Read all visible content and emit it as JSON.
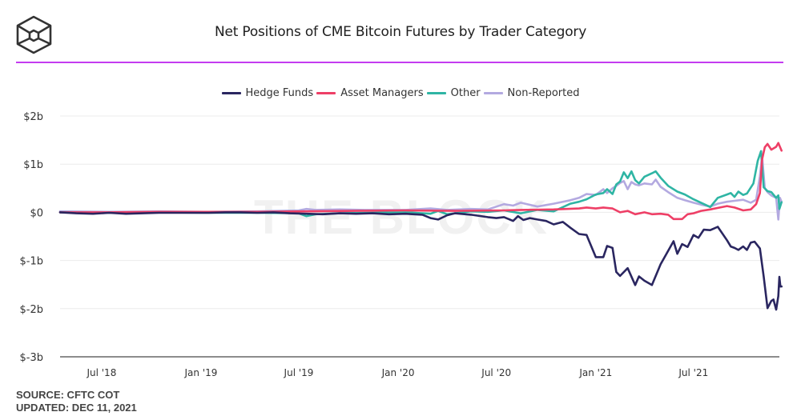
{
  "header": {
    "logo_icon": "cube-logo-icon",
    "title": "Net Positions of CME Bitcoin Futures by Trader Category",
    "divider_color": "#c43bf0"
  },
  "footer": {
    "source": "SOURCE: CFTC COT",
    "updated": "UPDATED: DEC 11, 2021"
  },
  "chart_data": {
    "type": "line",
    "title": "Net Positions of CME Bitcoin Futures by Trader Category",
    "xlabel": "",
    "ylabel": "",
    "watermark": "THE BLOCK",
    "legend_position": "top-center",
    "grid": true,
    "x_range": [
      "2018-04-15",
      "2021-12-07"
    ],
    "ylim": [
      -3,
      2
    ],
    "y_unit": "$b",
    "y_ticks": [
      {
        "value": 2,
        "label": "$2b"
      },
      {
        "value": 1,
        "label": "$1b"
      },
      {
        "value": 0,
        "label": "$0"
      },
      {
        "value": -1,
        "label": "$-1b"
      },
      {
        "value": -2,
        "label": "$-2b"
      },
      {
        "value": -3,
        "label": "$-3b"
      }
    ],
    "x_ticks": [
      {
        "date": "2018-07-01",
        "label": "Jul '18"
      },
      {
        "date": "2019-01-01",
        "label": "Jan '19"
      },
      {
        "date": "2019-07-01",
        "label": "Jul '19"
      },
      {
        "date": "2020-01-01",
        "label": "Jan '20"
      },
      {
        "date": "2020-07-01",
        "label": "Jul '20"
      },
      {
        "date": "2021-01-01",
        "label": "Jan '21"
      },
      {
        "date": "2021-07-01",
        "label": "Jul '21"
      }
    ],
    "series": [
      {
        "name": "Hedge Funds",
        "color": "#2a2660",
        "points": [
          [
            "2018-04-15",
            0.0
          ],
          [
            "2018-05-15",
            -0.02
          ],
          [
            "2018-06-15",
            -0.03
          ],
          [
            "2018-07-15",
            -0.01
          ],
          [
            "2018-08-15",
            -0.03
          ],
          [
            "2018-09-15",
            -0.02
          ],
          [
            "2018-10-15",
            -0.01
          ],
          [
            "2018-11-15",
            -0.01
          ],
          [
            "2018-12-15",
            -0.01
          ],
          [
            "2019-01-15",
            -0.01
          ],
          [
            "2019-02-15",
            0.0
          ],
          [
            "2019-03-15",
            0.0
          ],
          [
            "2019-04-15",
            -0.01
          ],
          [
            "2019-05-15",
            0.0
          ],
          [
            "2019-06-15",
            -0.02
          ],
          [
            "2019-07-15",
            -0.03
          ],
          [
            "2019-08-15",
            -0.04
          ],
          [
            "2019-09-15",
            -0.02
          ],
          [
            "2019-10-15",
            -0.03
          ],
          [
            "2019-11-15",
            -0.02
          ],
          [
            "2019-12-15",
            -0.04
          ],
          [
            "2020-01-15",
            -0.03
          ],
          [
            "2020-02-15",
            -0.05
          ],
          [
            "2020-03-01",
            -0.12
          ],
          [
            "2020-03-15",
            -0.15
          ],
          [
            "2020-04-01",
            -0.06
          ],
          [
            "2020-04-15",
            -0.02
          ],
          [
            "2020-05-15",
            -0.05
          ],
          [
            "2020-06-15",
            -0.1
          ],
          [
            "2020-07-01",
            -0.12
          ],
          [
            "2020-07-15",
            -0.1
          ],
          [
            "2020-08-01",
            -0.18
          ],
          [
            "2020-08-10",
            -0.08
          ],
          [
            "2020-08-20",
            -0.16
          ],
          [
            "2020-09-01",
            -0.12
          ],
          [
            "2020-09-15",
            -0.15
          ],
          [
            "2020-10-01",
            -0.18
          ],
          [
            "2020-10-15",
            -0.25
          ],
          [
            "2020-11-01",
            -0.2
          ],
          [
            "2020-11-15",
            -0.32
          ],
          [
            "2020-12-01",
            -0.45
          ],
          [
            "2020-12-15",
            -0.47
          ],
          [
            "2021-01-01",
            -0.93
          ],
          [
            "2021-01-15",
            -0.93
          ],
          [
            "2021-01-22",
            -0.7
          ],
          [
            "2021-02-01",
            -0.74
          ],
          [
            "2021-02-08",
            -1.24
          ],
          [
            "2021-02-15",
            -1.32
          ],
          [
            "2021-03-01",
            -1.16
          ],
          [
            "2021-03-15",
            -1.51
          ],
          [
            "2021-03-22",
            -1.33
          ],
          [
            "2021-04-01",
            -1.42
          ],
          [
            "2021-04-15",
            -1.51
          ],
          [
            "2021-05-01",
            -1.08
          ],
          [
            "2021-05-15",
            -0.8
          ],
          [
            "2021-05-25",
            -0.6
          ],
          [
            "2021-06-01",
            -0.86
          ],
          [
            "2021-06-10",
            -0.66
          ],
          [
            "2021-06-20",
            -0.72
          ],
          [
            "2021-07-01",
            -0.47
          ],
          [
            "2021-07-10",
            -0.53
          ],
          [
            "2021-07-20",
            -0.36
          ],
          [
            "2021-08-01",
            -0.37
          ],
          [
            "2021-08-15",
            -0.3
          ],
          [
            "2021-09-01",
            -0.58
          ],
          [
            "2021-09-08",
            -0.71
          ],
          [
            "2021-09-15",
            -0.74
          ],
          [
            "2021-09-22",
            -0.78
          ],
          [
            "2021-10-01",
            -0.71
          ],
          [
            "2021-10-08",
            -0.78
          ],
          [
            "2021-10-15",
            -0.63
          ],
          [
            "2021-10-22",
            -0.61
          ],
          [
            "2021-11-01",
            -0.75
          ],
          [
            "2021-11-08",
            -1.33
          ],
          [
            "2021-11-15",
            -1.99
          ],
          [
            "2021-11-22",
            -1.84
          ],
          [
            "2021-11-26",
            -1.81
          ],
          [
            "2021-12-01",
            -2.02
          ],
          [
            "2021-12-05",
            -1.74
          ],
          [
            "2021-12-07",
            -1.34
          ],
          [
            "2021-12-09",
            -1.54
          ],
          [
            "2021-12-11",
            -1.54
          ]
        ]
      },
      {
        "name": "Asset Managers",
        "color": "#ee3f66",
        "points": [
          [
            "2018-04-15",
            0.0
          ],
          [
            "2018-07-15",
            0.0
          ],
          [
            "2018-10-15",
            0.01
          ],
          [
            "2019-01-15",
            0.01
          ],
          [
            "2019-04-15",
            0.01
          ],
          [
            "2019-07-15",
            0.02
          ],
          [
            "2019-10-15",
            0.03
          ],
          [
            "2020-01-15",
            0.04
          ],
          [
            "2020-04-15",
            0.03
          ],
          [
            "2020-07-15",
            0.04
          ],
          [
            "2020-08-15",
            0.05
          ],
          [
            "2020-10-15",
            0.06
          ],
          [
            "2020-12-01",
            0.08
          ],
          [
            "2020-12-15",
            0.1
          ],
          [
            "2021-01-01",
            0.08
          ],
          [
            "2021-01-15",
            0.1
          ],
          [
            "2021-02-01",
            0.08
          ],
          [
            "2021-02-15",
            0.0
          ],
          [
            "2021-03-01",
            0.03
          ],
          [
            "2021-03-15",
            -0.04
          ],
          [
            "2021-04-01",
            0.0
          ],
          [
            "2021-04-15",
            -0.04
          ],
          [
            "2021-05-01",
            -0.03
          ],
          [
            "2021-05-15",
            -0.05
          ],
          [
            "2021-05-25",
            -0.14
          ],
          [
            "2021-06-10",
            -0.14
          ],
          [
            "2021-06-20",
            -0.04
          ],
          [
            "2021-07-01",
            -0.02
          ],
          [
            "2021-07-15",
            0.03
          ],
          [
            "2021-08-01",
            0.06
          ],
          [
            "2021-09-01",
            0.13
          ],
          [
            "2021-09-15",
            0.1
          ],
          [
            "2021-10-01",
            0.04
          ],
          [
            "2021-10-15",
            0.06
          ],
          [
            "2021-10-25",
            0.17
          ],
          [
            "2021-11-01",
            0.4
          ],
          [
            "2021-11-05",
            1.1
          ],
          [
            "2021-11-10",
            1.35
          ],
          [
            "2021-11-15",
            1.42
          ],
          [
            "2021-11-22",
            1.3
          ],
          [
            "2021-12-01",
            1.36
          ],
          [
            "2021-12-05",
            1.44
          ],
          [
            "2021-12-11",
            1.28
          ]
        ]
      },
      {
        "name": "Other",
        "color": "#2fb5a4",
        "points": [
          [
            "2018-04-15",
            0.0
          ],
          [
            "2018-07-15",
            -0.01
          ],
          [
            "2018-10-15",
            0.0
          ],
          [
            "2019-01-15",
            -0.01
          ],
          [
            "2019-04-15",
            -0.01
          ],
          [
            "2019-07-01",
            -0.02
          ],
          [
            "2019-07-15",
            -0.08
          ],
          [
            "2019-08-01",
            -0.04
          ],
          [
            "2019-09-15",
            -0.02
          ],
          [
            "2019-11-01",
            -0.01
          ],
          [
            "2020-01-15",
            0.0
          ],
          [
            "2020-03-01",
            -0.03
          ],
          [
            "2020-03-15",
            0.03
          ],
          [
            "2020-04-01",
            -0.04
          ],
          [
            "2020-05-15",
            0.02
          ],
          [
            "2020-06-15",
            0.01
          ],
          [
            "2020-07-15",
            0.04
          ],
          [
            "2020-08-15",
            -0.02
          ],
          [
            "2020-09-15",
            0.05
          ],
          [
            "2020-10-15",
            0.02
          ],
          [
            "2020-11-15",
            0.18
          ],
          [
            "2020-12-01",
            0.22
          ],
          [
            "2020-12-15",
            0.27
          ],
          [
            "2021-01-01",
            0.37
          ],
          [
            "2021-01-15",
            0.4
          ],
          [
            "2021-01-22",
            0.48
          ],
          [
            "2021-02-01",
            0.38
          ],
          [
            "2021-02-08",
            0.58
          ],
          [
            "2021-02-15",
            0.64
          ],
          [
            "2021-02-22",
            0.83
          ],
          [
            "2021-03-01",
            0.71
          ],
          [
            "2021-03-08",
            0.85
          ],
          [
            "2021-03-15",
            0.67
          ],
          [
            "2021-03-22",
            0.6
          ],
          [
            "2021-04-01",
            0.74
          ],
          [
            "2021-04-15",
            0.81
          ],
          [
            "2021-04-22",
            0.85
          ],
          [
            "2021-05-01",
            0.72
          ],
          [
            "2021-05-15",
            0.55
          ],
          [
            "2021-06-01",
            0.43
          ],
          [
            "2021-06-15",
            0.37
          ],
          [
            "2021-07-01",
            0.27
          ],
          [
            "2021-07-15",
            0.2
          ],
          [
            "2021-08-01",
            0.11
          ],
          [
            "2021-08-15",
            0.3
          ],
          [
            "2021-09-01",
            0.37
          ],
          [
            "2021-09-08",
            0.4
          ],
          [
            "2021-09-15",
            0.32
          ],
          [
            "2021-09-22",
            0.43
          ],
          [
            "2021-10-01",
            0.36
          ],
          [
            "2021-10-08",
            0.39
          ],
          [
            "2021-10-20",
            0.6
          ],
          [
            "2021-10-28",
            1.07
          ],
          [
            "2021-11-03",
            1.27
          ],
          [
            "2021-11-08",
            0.52
          ],
          [
            "2021-11-15",
            0.44
          ],
          [
            "2021-11-22",
            0.42
          ],
          [
            "2021-12-01",
            0.3
          ],
          [
            "2021-12-05",
            0.35
          ],
          [
            "2021-12-07",
            0.07
          ],
          [
            "2021-12-11",
            0.21
          ]
        ]
      },
      {
        "name": "Non-Reported",
        "color": "#b3a9e0",
        "points": [
          [
            "2018-04-15",
            0.02
          ],
          [
            "2018-07-15",
            0.01
          ],
          [
            "2018-10-15",
            0.02
          ],
          [
            "2019-01-15",
            0.01
          ],
          [
            "2019-04-15",
            0.02
          ],
          [
            "2019-07-01",
            0.04
          ],
          [
            "2019-07-15",
            0.07
          ],
          [
            "2019-08-01",
            0.05
          ],
          [
            "2019-09-15",
            0.06
          ],
          [
            "2019-11-01",
            0.05
          ],
          [
            "2020-01-15",
            0.05
          ],
          [
            "2020-03-01",
            0.08
          ],
          [
            "2020-04-01",
            0.05
          ],
          [
            "2020-05-15",
            0.07
          ],
          [
            "2020-06-15",
            0.06
          ],
          [
            "2020-07-15",
            0.17
          ],
          [
            "2020-08-01",
            0.14
          ],
          [
            "2020-08-15",
            0.2
          ],
          [
            "2020-09-15",
            0.12
          ],
          [
            "2020-10-15",
            0.18
          ],
          [
            "2020-11-15",
            0.25
          ],
          [
            "2020-12-01",
            0.3
          ],
          [
            "2020-12-15",
            0.38
          ],
          [
            "2021-01-01",
            0.36
          ],
          [
            "2021-01-15",
            0.48
          ],
          [
            "2021-01-22",
            0.4
          ],
          [
            "2021-02-01",
            0.5
          ],
          [
            "2021-02-08",
            0.55
          ],
          [
            "2021-02-15",
            0.61
          ],
          [
            "2021-02-22",
            0.65
          ],
          [
            "2021-03-01",
            0.48
          ],
          [
            "2021-03-08",
            0.63
          ],
          [
            "2021-03-15",
            0.58
          ],
          [
            "2021-03-22",
            0.56
          ],
          [
            "2021-04-01",
            0.6
          ],
          [
            "2021-04-15",
            0.58
          ],
          [
            "2021-04-22",
            0.68
          ],
          [
            "2021-05-01",
            0.53
          ],
          [
            "2021-05-15",
            0.42
          ],
          [
            "2021-06-01",
            0.3
          ],
          [
            "2021-06-15",
            0.25
          ],
          [
            "2021-07-01",
            0.2
          ],
          [
            "2021-07-15",
            0.16
          ],
          [
            "2021-08-01",
            0.12
          ],
          [
            "2021-08-15",
            0.18
          ],
          [
            "2021-09-01",
            0.22
          ],
          [
            "2021-09-15",
            0.24
          ],
          [
            "2021-10-01",
            0.26
          ],
          [
            "2021-10-15",
            0.2
          ],
          [
            "2021-10-25",
            0.26
          ],
          [
            "2021-11-01",
            0.75
          ],
          [
            "2021-11-05",
            1.17
          ],
          [
            "2021-11-10",
            0.5
          ],
          [
            "2021-11-15",
            0.42
          ],
          [
            "2021-11-22",
            0.35
          ],
          [
            "2021-12-01",
            0.3
          ],
          [
            "2021-12-05",
            -0.15
          ],
          [
            "2021-12-08",
            0.3
          ],
          [
            "2021-12-11",
            0.22
          ]
        ]
      }
    ]
  }
}
